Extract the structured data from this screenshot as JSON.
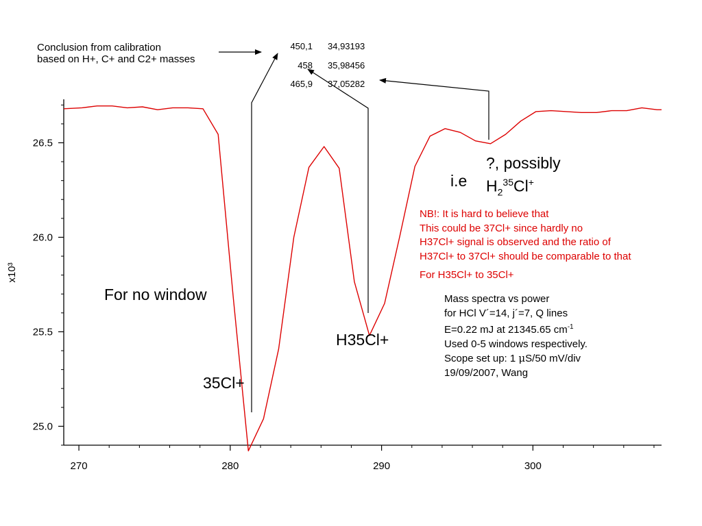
{
  "chart_data": {
    "type": "line",
    "title": "",
    "xlabel": "",
    "ylabel": "x10³",
    "xlim": [
      269,
      308.5
    ],
    "ylim": [
      24.9,
      26.73
    ],
    "x_ticks": [
      270,
      280,
      290,
      300
    ],
    "y_ticks": [
      25.0,
      25.5,
      26.0,
      26.5
    ],
    "y_tick_labels": [
      "25.0",
      "25.5",
      "26.0",
      "26.5"
    ],
    "grid": false,
    "series": [
      {
        "color": "#dd0000",
        "x": [
          269,
          270.2,
          271.2,
          272.2,
          273.2,
          274.2,
          275.2,
          276.2,
          277.2,
          278.2,
          279.2,
          280.2,
          281.2,
          282.2,
          283.2,
          284.2,
          285.2,
          286.2,
          287.2,
          288.2,
          289.2,
          290.2,
          291.2,
          292.2,
          293.2,
          294.2,
          295.2,
          296.2,
          297.2,
          298.2,
          299.2,
          300.2,
          301.2,
          302.2,
          303.2,
          304.2,
          305.2,
          306.2,
          307.2,
          308.2,
          308.5
        ],
        "y": [
          26.68,
          26.685,
          26.695,
          26.695,
          26.685,
          26.69,
          26.675,
          26.685,
          26.685,
          26.68,
          26.545,
          25.68,
          24.87,
          25.04,
          25.41,
          26.0,
          26.37,
          26.48,
          26.365,
          25.765,
          25.48,
          25.65,
          26.005,
          26.375,
          26.535,
          26.575,
          26.555,
          26.51,
          26.495,
          26.545,
          26.615,
          26.665,
          26.67,
          26.665,
          26.66,
          26.66,
          26.67,
          26.67,
          26.685,
          26.675,
          26.675
        ]
      }
    ]
  },
  "calibration": {
    "note_line1": "Conclusion from calibration",
    "note_line2": "based on H+, C+ and C2+ masses",
    "rows": [
      {
        "a": "450,1",
        "b": "34,93193"
      },
      {
        "a": "458",
        "b": "35,98456"
      },
      {
        "a": "465,9",
        "b": "37,05282"
      }
    ]
  },
  "labels": {
    "for_no_window": "For no window",
    "cl35": "35Cl+",
    "h35cl": "H35Cl+",
    "ie": "i.e",
    "possibly_line1": "?, possibly",
    "possibly_h": "H",
    "possibly_sub": "2",
    "possibly_sup": "35",
    "possibly_cl": "Cl",
    "possibly_plus": "+"
  },
  "nb_note": {
    "lines": [
      "NB!: It is hard to believe that",
      "This could be 37Cl+ since hardly no",
      "H37Cl+ signal is observed and the ratio of",
      "H37Cl+ to 37Cl+ should be comparable to that"
    ],
    "last_line": "For H35Cl+ to 35Cl+",
    "color": "#dd0000"
  },
  "info": {
    "line1": "Mass spectra vs power",
    "line2": "for HCl V´=14, j´=7, Q lines",
    "line3": "E=0.22 mJ at 21345.65 cm",
    "line3_sup": "-1",
    "line4": "Used 0-5 windows respectively.",
    "line5_a": "Scope set up: 1 ",
    "line5_mu": "μ",
    "line5_b": "S/50 mV/div",
    "line6": "19/09/2007, Wang"
  }
}
